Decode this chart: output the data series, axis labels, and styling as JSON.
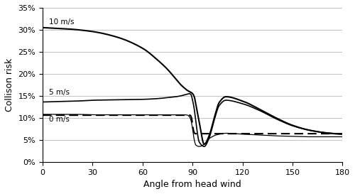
{
  "title": "",
  "xlabel": "Angle from head wind",
  "ylabel": "Collison risk",
  "xlim": [
    0,
    180
  ],
  "ylim": [
    0.0,
    0.35
  ],
  "yticks": [
    0.0,
    0.05,
    0.1,
    0.15,
    0.2,
    0.25,
    0.3,
    0.35
  ],
  "ytick_labels": [
    "0%",
    "5%",
    "10%",
    "15%",
    "20%",
    "25%",
    "30%",
    "35%"
  ],
  "xticks": [
    0,
    30,
    60,
    90,
    120,
    150,
    180
  ],
  "line_color": "#000000",
  "dashed_color": "#000000",
  "background": "#ffffff",
  "label_10": "10 m/s",
  "label_5": "5 m/s",
  "label_0": "0 m/s",
  "wind10_x": [
    0,
    5,
    15,
    30,
    45,
    60,
    70,
    75,
    80,
    83,
    85,
    87,
    88,
    89,
    90,
    91,
    92,
    94,
    97,
    100,
    103,
    106,
    110,
    120,
    130,
    140,
    150,
    160,
    170,
    180
  ],
  "wind10_y": [
    0.305,
    0.304,
    0.302,
    0.296,
    0.283,
    0.258,
    0.228,
    0.21,
    0.188,
    0.175,
    0.168,
    0.162,
    0.16,
    0.158,
    0.155,
    0.148,
    0.13,
    0.09,
    0.04,
    0.06,
    0.1,
    0.135,
    0.148,
    0.138,
    0.12,
    0.1,
    0.083,
    0.072,
    0.066,
    0.063
  ],
  "wind5_x": [
    0,
    10,
    20,
    30,
    45,
    60,
    70,
    75,
    80,
    83,
    85,
    87,
    88,
    89,
    90,
    91,
    92,
    94,
    97,
    100,
    103,
    106,
    110,
    120,
    130,
    140,
    150,
    160,
    170,
    180
  ],
  "wind5_y": [
    0.136,
    0.137,
    0.138,
    0.14,
    0.141,
    0.142,
    0.144,
    0.146,
    0.148,
    0.15,
    0.152,
    0.154,
    0.155,
    0.153,
    0.14,
    0.12,
    0.09,
    0.045,
    0.035,
    0.055,
    0.095,
    0.128,
    0.14,
    0.132,
    0.117,
    0.098,
    0.082,
    0.072,
    0.066,
    0.063
  ],
  "wind0_x": [
    0,
    10,
    20,
    30,
    45,
    60,
    70,
    80,
    85,
    87,
    88,
    89,
    90,
    91,
    92,
    94,
    97,
    100,
    105,
    110,
    120,
    130,
    140,
    150,
    160,
    170,
    180
  ],
  "wind0_y": [
    0.108,
    0.108,
    0.108,
    0.107,
    0.107,
    0.107,
    0.107,
    0.107,
    0.107,
    0.106,
    0.103,
    0.095,
    0.075,
    0.05,
    0.038,
    0.035,
    0.04,
    0.053,
    0.062,
    0.065,
    0.063,
    0.061,
    0.059,
    0.058,
    0.057,
    0.057,
    0.057
  ],
  "dashed_level1": 0.106,
  "dashed_level2": 0.064,
  "dashed_transition_x": [
    88.5,
    89.0,
    89.5,
    90.0,
    90.5,
    91.0,
    91.5
  ],
  "dashed_transition_y": [
    0.106,
    0.104,
    0.098,
    0.085,
    0.072,
    0.066,
    0.064
  ]
}
